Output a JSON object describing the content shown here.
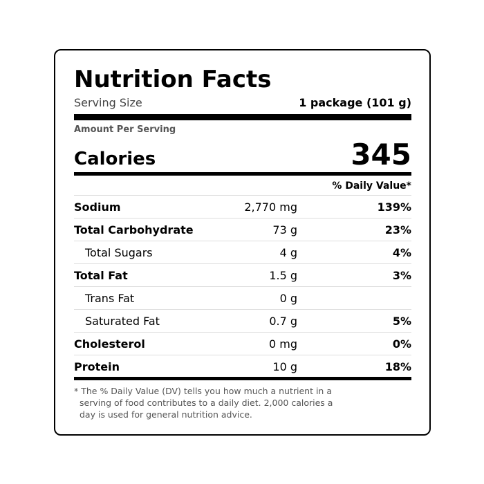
{
  "header": {
    "title": "Nutrition Facts",
    "serving_label": "Serving Size",
    "serving_value": "1 package (101 g)"
  },
  "amount_per_serving": "Amount Per Serving",
  "calories": {
    "label": "Calories",
    "value": "345"
  },
  "dv_header": "% Daily Value*",
  "table": {
    "rows": [
      [
        "Sodium",
        "2,770 mg",
        "139%"
      ],
      [
        "Total Carbohydrate",
        "73 g",
        "23%"
      ],
      [
        "Total Sugars",
        "4 g",
        "4%"
      ],
      [
        "Total Fat",
        "1.5 g",
        "3%"
      ],
      [
        "Trans Fat",
        "0 g",
        null
      ],
      [
        "Saturated Fat",
        "0.7 g",
        "5%"
      ],
      [
        "Cholesterol",
        "0 mg",
        "0%"
      ],
      [
        "Protein",
        "10 g",
        "18%"
      ]
    ]
  },
  "footnote": "* The % Daily Value (DV) tells you how much a nutrient in a serving of food contributes to a daily diet. 2,000 calories a day is used for general nutrition advice."
}
